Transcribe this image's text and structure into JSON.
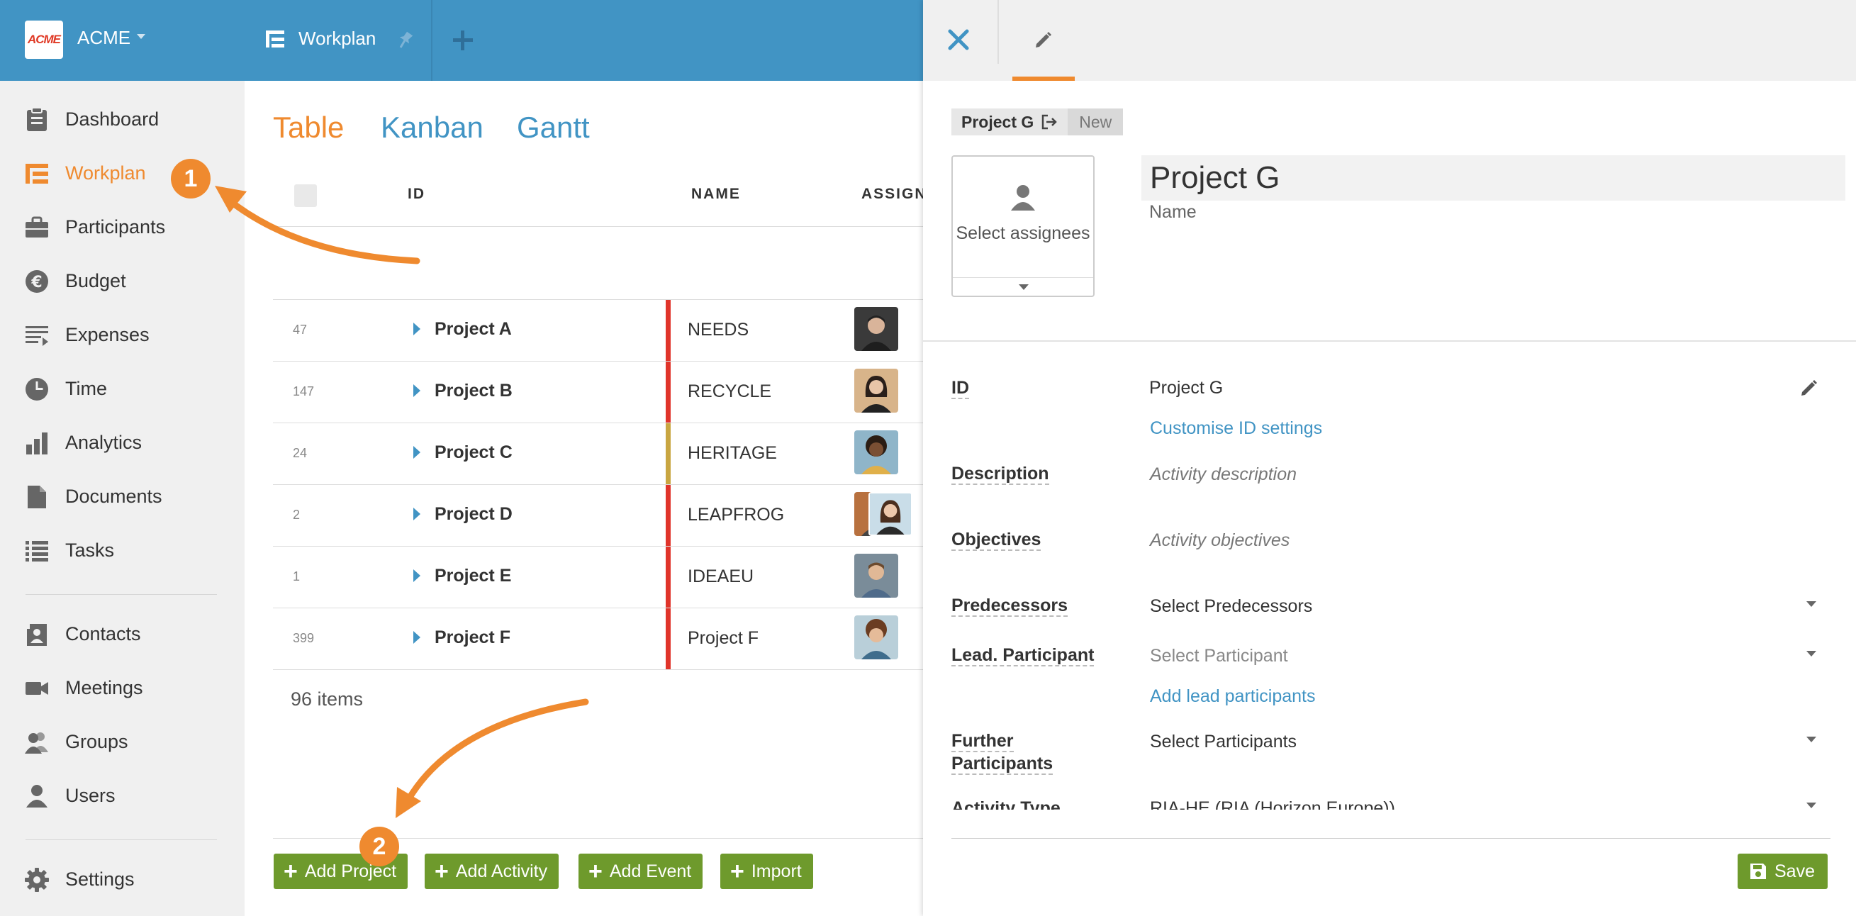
{
  "app": {
    "logo_text": "ACME",
    "org_name": "ACME",
    "current_tab": "Workplan"
  },
  "sidebar": {
    "items": [
      {
        "label": "Dashboard",
        "icon": "clipboard-icon"
      },
      {
        "label": "Workplan",
        "icon": "workplan-tree-icon",
        "active": true
      },
      {
        "label": "Participants",
        "icon": "briefcase-icon"
      },
      {
        "label": "Budget",
        "icon": "euro-icon"
      },
      {
        "label": "Expenses",
        "icon": "expenses-list-icon"
      },
      {
        "label": "Time",
        "icon": "clock-icon"
      },
      {
        "label": "Analytics",
        "icon": "bar-chart-icon"
      },
      {
        "label": "Documents",
        "icon": "document-icon"
      },
      {
        "label": "Tasks",
        "icon": "task-list-icon"
      },
      {
        "label": "Contacts",
        "icon": "contact-card-icon"
      },
      {
        "label": "Meetings",
        "icon": "video-camera-icon"
      },
      {
        "label": "Groups",
        "icon": "group-icon"
      },
      {
        "label": "Users",
        "icon": "user-icon"
      },
      {
        "label": "Settings",
        "icon": "gear-icon"
      }
    ]
  },
  "main": {
    "view_tabs": [
      {
        "label": "Table",
        "active": true
      },
      {
        "label": "Kanban"
      },
      {
        "label": "Gantt"
      }
    ],
    "columns": {
      "id": "ID",
      "name": "NAME",
      "assignee": "ASSIGN"
    },
    "rows": [
      {
        "id": "47",
        "name": "Project A",
        "acronym": "NEEDS",
        "color": "#e0342a"
      },
      {
        "id": "147",
        "name": "Project B",
        "acronym": "RECYCLE",
        "color": "#e0342a"
      },
      {
        "id": "24",
        "name": "Project C",
        "acronym": "HERITAGE",
        "color": "#c9a641"
      },
      {
        "id": "2",
        "name": "Project D",
        "acronym": "LEAPFROG",
        "color": "#e0342a"
      },
      {
        "id": "1",
        "name": "Project E",
        "acronym": "IDEAEU",
        "color": "#e0342a"
      },
      {
        "id": "399",
        "name": "Project F",
        "acronym": "Project F",
        "color": "#e0342a"
      }
    ],
    "items_count": "96 items",
    "buttons": {
      "add_project": "Add Project",
      "add_activity": "Add Activity",
      "add_event": "Add Event",
      "import": "Import"
    },
    "callouts": {
      "step1": "1",
      "step2": "2"
    }
  },
  "panel": {
    "breadcrumb": {
      "project": "Project G",
      "status": "New"
    },
    "assignees_label": "Select assignees",
    "name_value": "Project G",
    "name_label": "Name",
    "fields": {
      "id_label": "ID",
      "id_value": "Project G",
      "id_link": "Customise ID settings",
      "description_label": "Description",
      "description_placeholder": "Activity description",
      "objectives_label": "Objectives",
      "objectives_placeholder": "Activity objectives",
      "predecessors_label": "Predecessors",
      "predecessors_value": "Select Predecessors",
      "lead_label": "Lead. Participant",
      "lead_value": "Select Participant",
      "lead_link": "Add lead participants",
      "further_label": "Further Participants",
      "further_value": "Select Participants",
      "activity_type_label": "Activity Type",
      "activity_type_value": "RIA-HE (RIA (Horizon Europe))"
    },
    "save_label": "Save"
  },
  "colors": {
    "brand_blue": "#4194c4",
    "accent_orange": "#ef8a2f",
    "action_green": "#6e9a2c"
  }
}
